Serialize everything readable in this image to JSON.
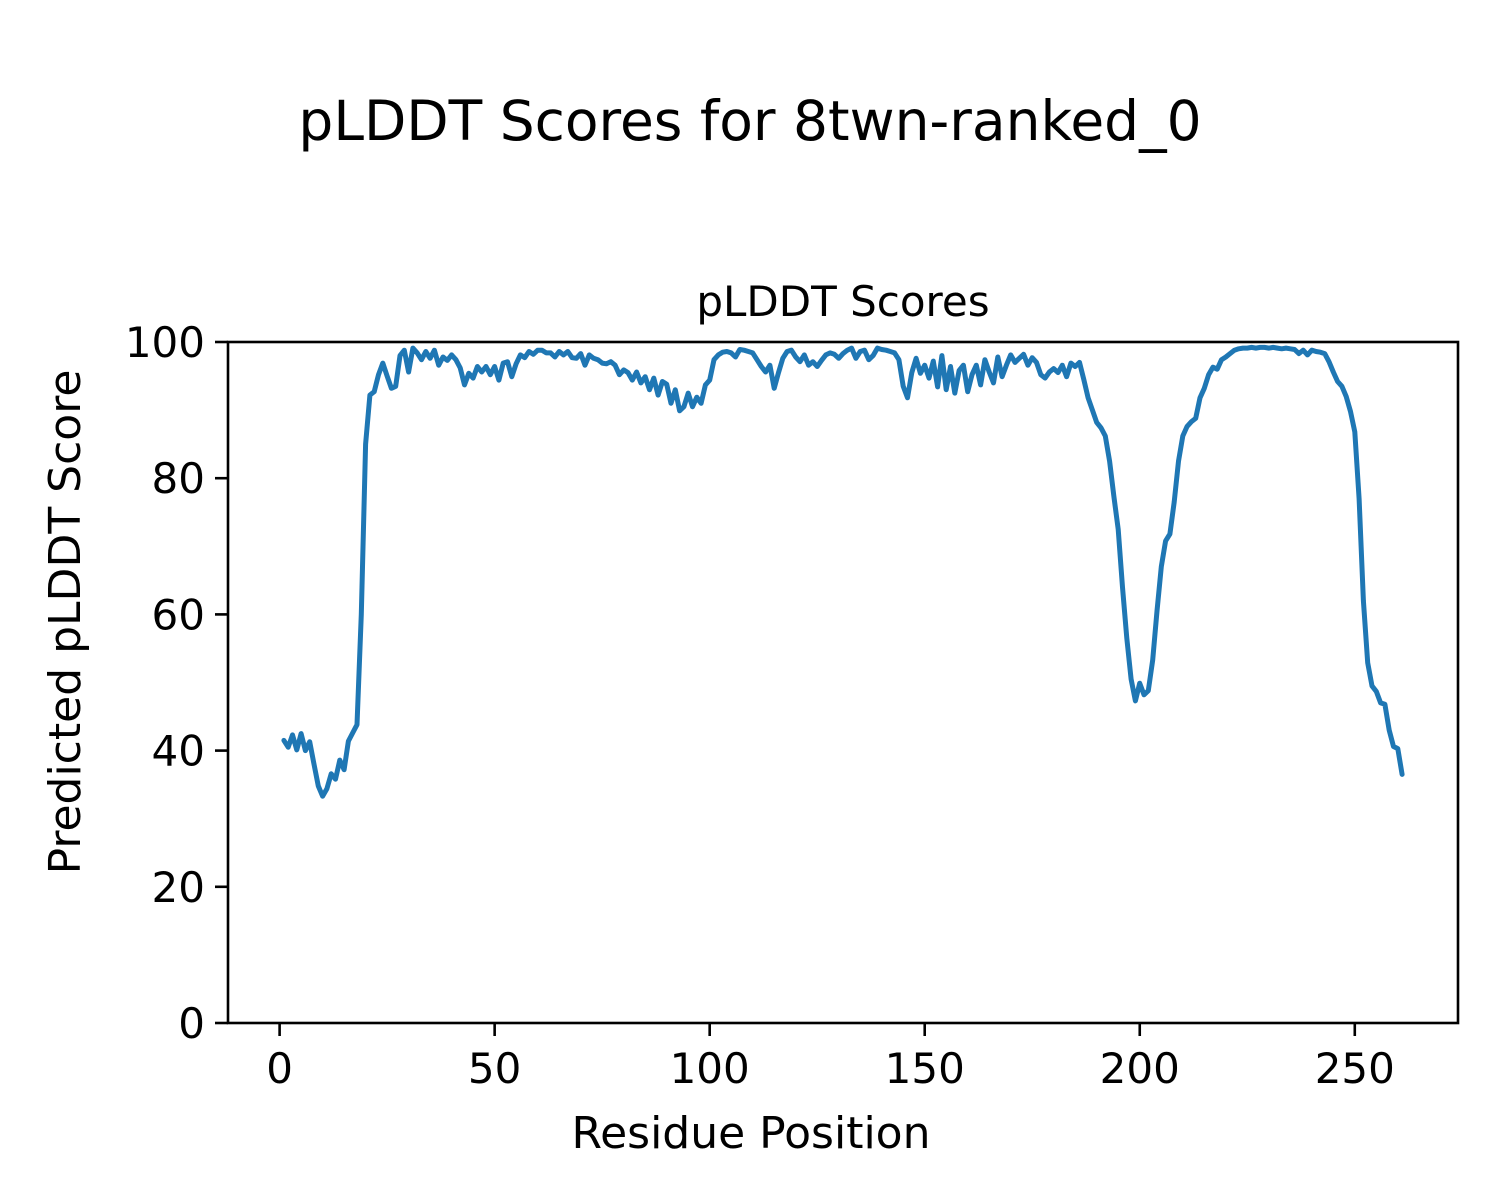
{
  "chart_data": {
    "type": "line",
    "suptitle": "pLDDT Scores for 8twn-ranked_0",
    "axes_title": "pLDDT Scores",
    "xlabel": "Residue Position",
    "ylabel": "Predicted pLDDT Score",
    "xlim": [
      -12,
      274
    ],
    "ylim": [
      0,
      100
    ],
    "x_ticks": [
      0,
      50,
      100,
      150,
      200,
      250
    ],
    "y_ticks": [
      0,
      20,
      40,
      60,
      80,
      100
    ],
    "grid": false,
    "legend": null,
    "line_color": "#1f77b4",
    "background_color": "#ffffff",
    "series": [
      {
        "name": "pLDDT",
        "x_start": 1,
        "x_step": 1,
        "values": [
          41.5,
          40.5,
          42.3,
          40.1,
          42.5,
          40.0,
          41.3,
          38.0,
          34.8,
          33.3,
          34.4,
          36.6,
          35.8,
          38.6,
          37.2,
          41.4,
          42.6,
          43.8,
          60.0,
          85.0,
          92.2,
          92.7,
          95.2,
          96.9,
          95.0,
          93.2,
          93.5,
          98.0,
          98.8,
          95.6,
          99.1,
          98.4,
          97.4,
          98.6,
          97.6,
          98.8,
          96.6,
          97.8,
          97.3,
          98.1,
          97.4,
          96.2,
          93.7,
          95.4,
          94.7,
          96.4,
          95.6,
          96.4,
          95.2,
          96.4,
          94.4,
          96.9,
          97.1,
          94.9,
          96.8,
          98.1,
          97.7,
          98.6,
          98.2,
          98.8,
          98.8,
          98.4,
          98.4,
          97.8,
          98.6,
          98.1,
          98.6,
          97.7,
          97.6,
          98.3,
          96.6,
          98.1,
          97.6,
          97.4,
          96.9,
          96.8,
          97.1,
          96.6,
          95.2,
          95.9,
          95.5,
          94.4,
          95.6,
          94.0,
          94.9,
          93.0,
          94.7,
          92.2,
          94.2,
          93.8,
          91.0,
          93.0,
          89.9,
          90.5,
          92.5,
          90.5,
          91.9,
          91.0,
          93.7,
          94.4,
          97.4,
          98.1,
          98.5,
          98.6,
          98.4,
          97.8,
          98.9,
          98.8,
          98.6,
          98.4,
          97.4,
          96.4,
          95.6,
          96.6,
          93.2,
          95.5,
          97.6,
          98.6,
          98.8,
          97.8,
          97.1,
          98.1,
          96.6,
          97.1,
          96.4,
          97.3,
          98.1,
          98.4,
          98.2,
          97.6,
          98.3,
          98.8,
          99.1,
          97.6,
          98.6,
          98.8,
          97.4,
          98.0,
          99.1,
          98.9,
          98.8,
          98.6,
          98.4,
          97.4,
          93.5,
          91.8,
          95.5,
          97.6,
          95.4,
          96.6,
          94.7,
          97.2,
          93.4,
          98.0,
          93.0,
          96.4,
          92.5,
          95.8,
          96.6,
          92.7,
          95.2,
          96.6,
          93.7,
          97.4,
          95.6,
          94.0,
          97.8,
          94.9,
          96.6,
          98.1,
          97.0,
          97.6,
          98.2,
          96.6,
          97.7,
          97.0,
          95.2,
          94.7,
          95.6,
          96.1,
          95.5,
          96.6,
          94.9,
          96.9,
          96.4,
          97.0,
          94.5,
          91.8,
          90.0,
          88.2,
          87.4,
          86.2,
          82.5,
          77.3,
          72.5,
          64.0,
          56.5,
          50.5,
          47.3,
          49.9,
          48.2,
          48.8,
          53.3,
          60.5,
          67.0,
          70.8,
          71.8,
          76.5,
          82.5,
          86.2,
          87.6,
          88.3,
          88.8,
          91.8,
          93.2,
          95.2,
          96.3,
          96.0,
          97.4,
          97.8,
          98.3,
          98.8,
          99.0,
          99.1,
          99.1,
          99.2,
          99.1,
          99.2,
          99.2,
          99.1,
          99.2,
          99.1,
          99.0,
          99.1,
          99.0,
          98.9,
          98.3,
          98.8,
          98.1,
          98.8,
          98.6,
          98.5,
          98.3,
          97.1,
          95.6,
          94.2,
          93.5,
          92.0,
          89.8,
          86.8,
          77.0,
          62.0,
          52.9,
          49.5,
          48.7,
          47.0,
          46.8,
          43.0,
          40.6,
          40.3,
          36.5
        ]
      }
    ]
  }
}
